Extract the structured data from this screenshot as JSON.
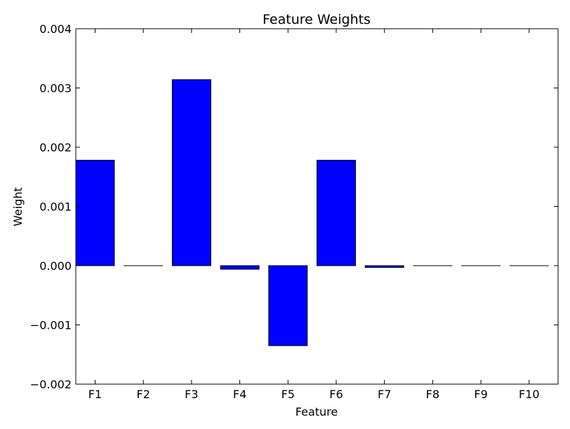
{
  "chart_data": {
    "type": "bar",
    "title": "Feature Weights",
    "xlabel": "Feature",
    "ylabel": "Weight",
    "categories": [
      "F1",
      "F2",
      "F3",
      "F4",
      "F5",
      "F6",
      "F7",
      "F8",
      "F9",
      "F10"
    ],
    "values": [
      0.00178,
      0.0,
      0.00314,
      -6e-05,
      -0.00135,
      0.00178,
      -3e-05,
      0.0,
      0.0,
      0.0
    ],
    "ylim": [
      -0.002,
      0.004
    ],
    "yticks": [
      -0.002,
      -0.001,
      0.0,
      0.001,
      0.002,
      0.003,
      0.004
    ],
    "ytick_labels": [
      "−0.002",
      "−0.001",
      "0.000",
      "0.001",
      "0.002",
      "0.003",
      "0.004"
    ],
    "grid": false,
    "bar_color": "#0000ff",
    "edge_color": "#000000"
  }
}
